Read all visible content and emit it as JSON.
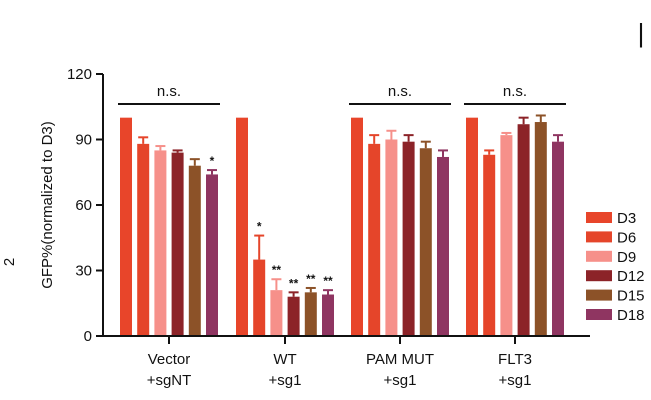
{
  "chart_data": {
    "type": "bar",
    "ylabel": "GFP%(normalized to D3)",
    "ylim": [
      0,
      120
    ],
    "yticks": [
      0,
      30,
      60,
      90,
      120
    ],
    "panel_mark": "|",
    "side_mark": "2",
    "groups": [
      {
        "line1": "Vector",
        "line2": "+sgNT"
      },
      {
        "line1": "WT",
        "line2": "+sg1"
      },
      {
        "line1": "PAM MUT",
        "line2": "+sg1"
      },
      {
        "line1": "FLT3",
        "line2": "+sg1"
      }
    ],
    "series": [
      {
        "name": "D3",
        "color": "#e8452a",
        "values": [
          100,
          100,
          100,
          100
        ],
        "errors": [
          0,
          0,
          0,
          0
        ],
        "sig": [
          "",
          "",
          "",
          ""
        ]
      },
      {
        "name": "D6",
        "color": "#e5452a",
        "values": [
          88,
          35,
          88,
          83
        ],
        "errors": [
          3,
          11,
          4,
          2
        ],
        "sig": [
          "",
          "*",
          "",
          ""
        ]
      },
      {
        "name": "D9",
        "color": "#f6908a",
        "values": [
          85,
          21,
          90,
          92
        ],
        "errors": [
          2,
          5,
          4,
          1
        ],
        "sig": [
          "",
          "**",
          "",
          ""
        ]
      },
      {
        "name": "D12",
        "color": "#8c2328",
        "values": [
          84,
          18,
          89,
          97
        ],
        "errors": [
          1,
          2,
          3,
          3
        ],
        "sig": [
          "",
          "**",
          "",
          ""
        ]
      },
      {
        "name": "D15",
        "color": "#8c5228",
        "values": [
          78,
          20,
          86,
          98
        ],
        "errors": [
          3,
          2,
          3,
          3
        ],
        "sig": [
          "",
          "**",
          "",
          ""
        ]
      },
      {
        "name": "D18",
        "color": "#8f3561",
        "values": [
          74,
          19,
          82,
          89
        ],
        "errors": [
          2,
          2,
          3,
          3
        ],
        "sig": [
          "*",
          "**",
          "",
          ""
        ]
      }
    ],
    "brackets": [
      {
        "group": 0,
        "label": "n.s."
      },
      {
        "group": 2,
        "label": "n.s."
      },
      {
        "group": 3,
        "label": "n.s."
      }
    ]
  }
}
